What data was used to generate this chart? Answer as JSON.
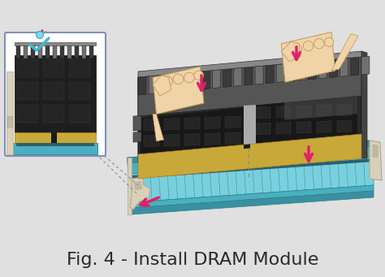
{
  "title": "Fig. 4 - Install DRAM Module",
  "title_fontsize": 16,
  "title_color": "#2a2a2a",
  "background_color": "#e0e0e0",
  "figure_width": 4.74,
  "figure_height": 3.41,
  "dpi": 100,
  "slot_top": "#5bbfcf",
  "slot_face": "#4aafbf",
  "slot_side": "#3a8fa0",
  "slot_inner": "#78d0de",
  "slot_groove": "#2a6070",
  "slot_border": "#2a8090",
  "module_dark": "#2a2a2a",
  "module_mid": "#383838",
  "module_heatsink": "#555555",
  "module_fin": "#707070",
  "module_fin_dark": "#3a3a3a",
  "module_chip_dark": "#111111",
  "module_chip_light": "#222222",
  "module_reflect": "#999999",
  "module_gold": "#c8a838",
  "module_gold_dark": "#a88020",
  "clip_body": "#d8d0b8",
  "clip_dark": "#b0a890",
  "clip_mid": "#c0b8a0",
  "arrow_color": "#e0206a",
  "check_color": "#40b8d8",
  "hand_skin": "#f0d4a8",
  "hand_mid": "#e0c090",
  "hand_dark": "#c8a870",
  "hand_outline": "#c09858",
  "inset_bg": "#ffffff",
  "inset_border": "#8090b8",
  "dashed_color": "#888888"
}
